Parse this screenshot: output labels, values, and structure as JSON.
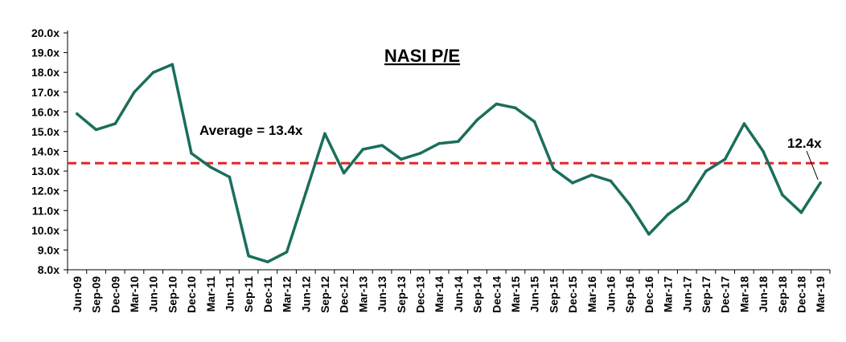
{
  "chart_data": {
    "type": "line",
    "title": "NASI P/E",
    "xlabel": "",
    "ylabel": "",
    "ylim": [
      8.0,
      20.0
    ],
    "y_ticks": [
      "8.0x",
      "9.0x",
      "10.0x",
      "11.0x",
      "12.0x",
      "13.0x",
      "14.0x",
      "15.0x",
      "16.0x",
      "17.0x",
      "18.0x",
      "19.0x",
      "20.0x"
    ],
    "categories": [
      "Jun-09",
      "Sep-09",
      "Dec-09",
      "Mar-10",
      "Jun-10",
      "Sep-10",
      "Dec-10",
      "Mar-11",
      "Jun-11",
      "Sep-11",
      "Dec-11",
      "Mar-12",
      "Jun-12",
      "Sep-12",
      "Dec-12",
      "Mar-13",
      "Jun-13",
      "Sep-13",
      "Dec-13",
      "Mar-14",
      "Jun-14",
      "Sep-14",
      "Dec-14",
      "Mar-15",
      "Jun-15",
      "Sep-15",
      "Dec-15",
      "Mar-16",
      "Jun-16",
      "Sep-16",
      "Dec-16",
      "Mar-17",
      "Jun-17",
      "Sep-17",
      "Dec-17",
      "Mar-18",
      "Jun-18",
      "Sep-18",
      "Dec-18",
      "Mar-19"
    ],
    "series": [
      {
        "color": "#1a6e5c",
        "values": [
          15.9,
          15.1,
          15.4,
          17.0,
          18.0,
          18.4,
          13.9,
          13.2,
          12.7,
          8.7,
          8.4,
          8.9,
          11.9,
          14.9,
          12.9,
          14.1,
          14.3,
          13.6,
          13.9,
          14.4,
          14.5,
          15.6,
          16.4,
          16.2,
          15.5,
          13.1,
          12.4,
          12.8,
          12.5,
          11.3,
          9.8,
          10.8,
          11.5,
          13.0,
          13.6,
          15.4,
          14.0,
          11.8,
          10.9,
          12.4
        ]
      }
    ],
    "average": {
      "value": 13.4,
      "label": "Average = 13.4x",
      "color": "#e8232a"
    },
    "last_value_label": "12.4x",
    "grid": false,
    "legend": "none"
  }
}
